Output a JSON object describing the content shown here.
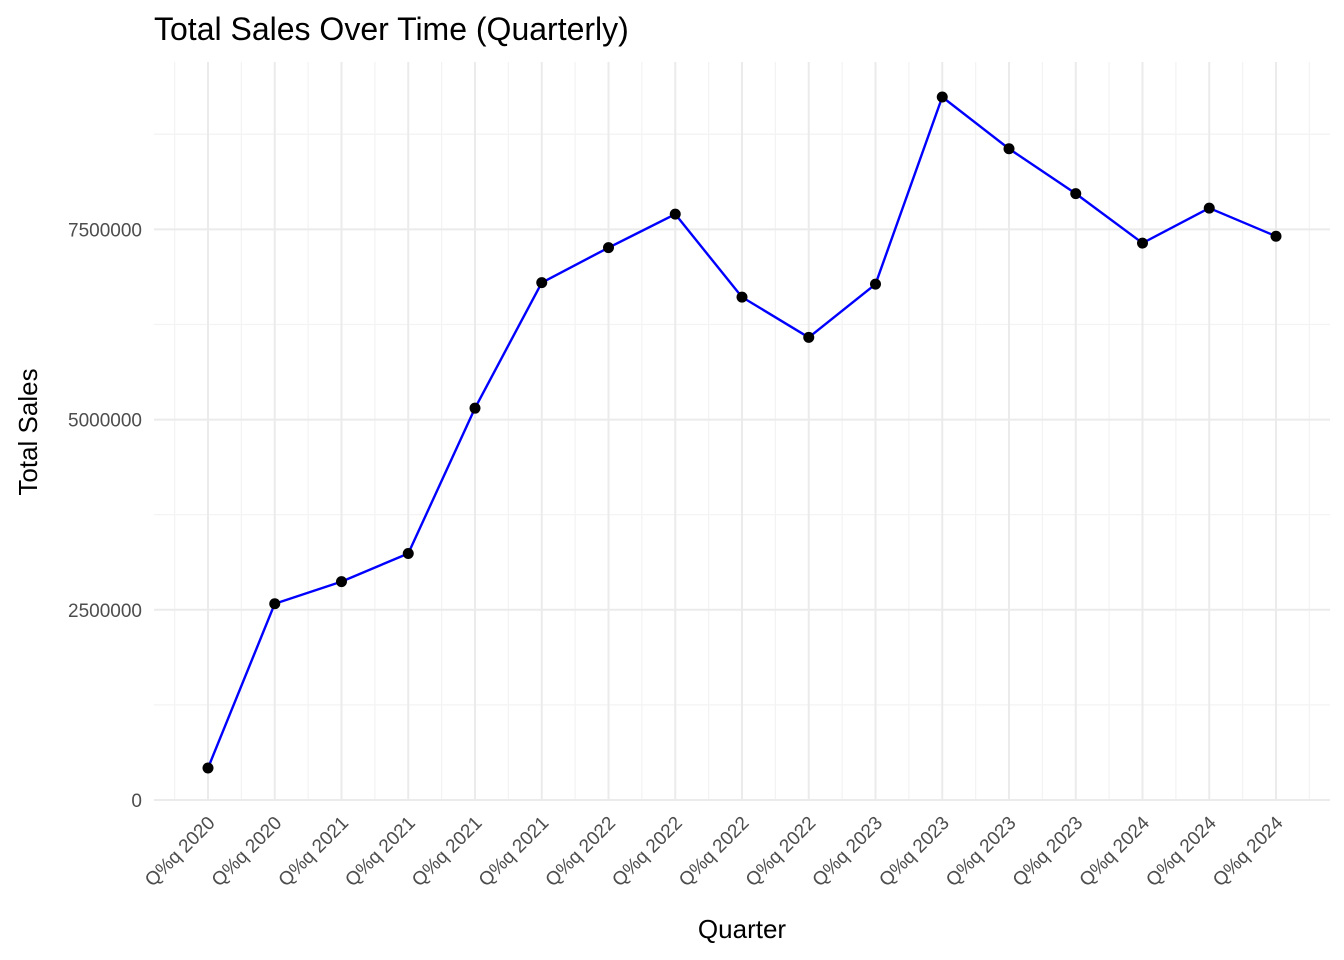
{
  "chart_data": {
    "type": "line",
    "title": "Total Sales Over Time (Quarterly)",
    "xlabel": "Quarter",
    "ylabel": "Total Sales",
    "categories": [
      "Q%q 2020",
      "Q%q 2020",
      "Q%q 2021",
      "Q%q 2021",
      "Q%q 2021",
      "Q%q 2021",
      "Q%q 2022",
      "Q%q 2022",
      "Q%q 2022",
      "Q%q 2022",
      "Q%q 2023",
      "Q%q 2023",
      "Q%q 2023",
      "Q%q 2023",
      "Q%q 2024",
      "Q%q 2024",
      "Q%q 2024"
    ],
    "values": [
      420000,
      2580000,
      2870000,
      3240000,
      5150000,
      6800000,
      7260000,
      7700000,
      6610000,
      6080000,
      6780000,
      9240000,
      8560000,
      7970000,
      7320000,
      7780000,
      7410000
    ],
    "yticks": [
      0,
      2500000,
      5000000,
      7500000
    ],
    "ytick_labels": [
      "0",
      "2500000",
      "5000000",
      "7500000"
    ],
    "ylim": [
      0,
      9240000
    ],
    "grid": true,
    "line_color": "#0000ff",
    "point_color": "#000000"
  }
}
